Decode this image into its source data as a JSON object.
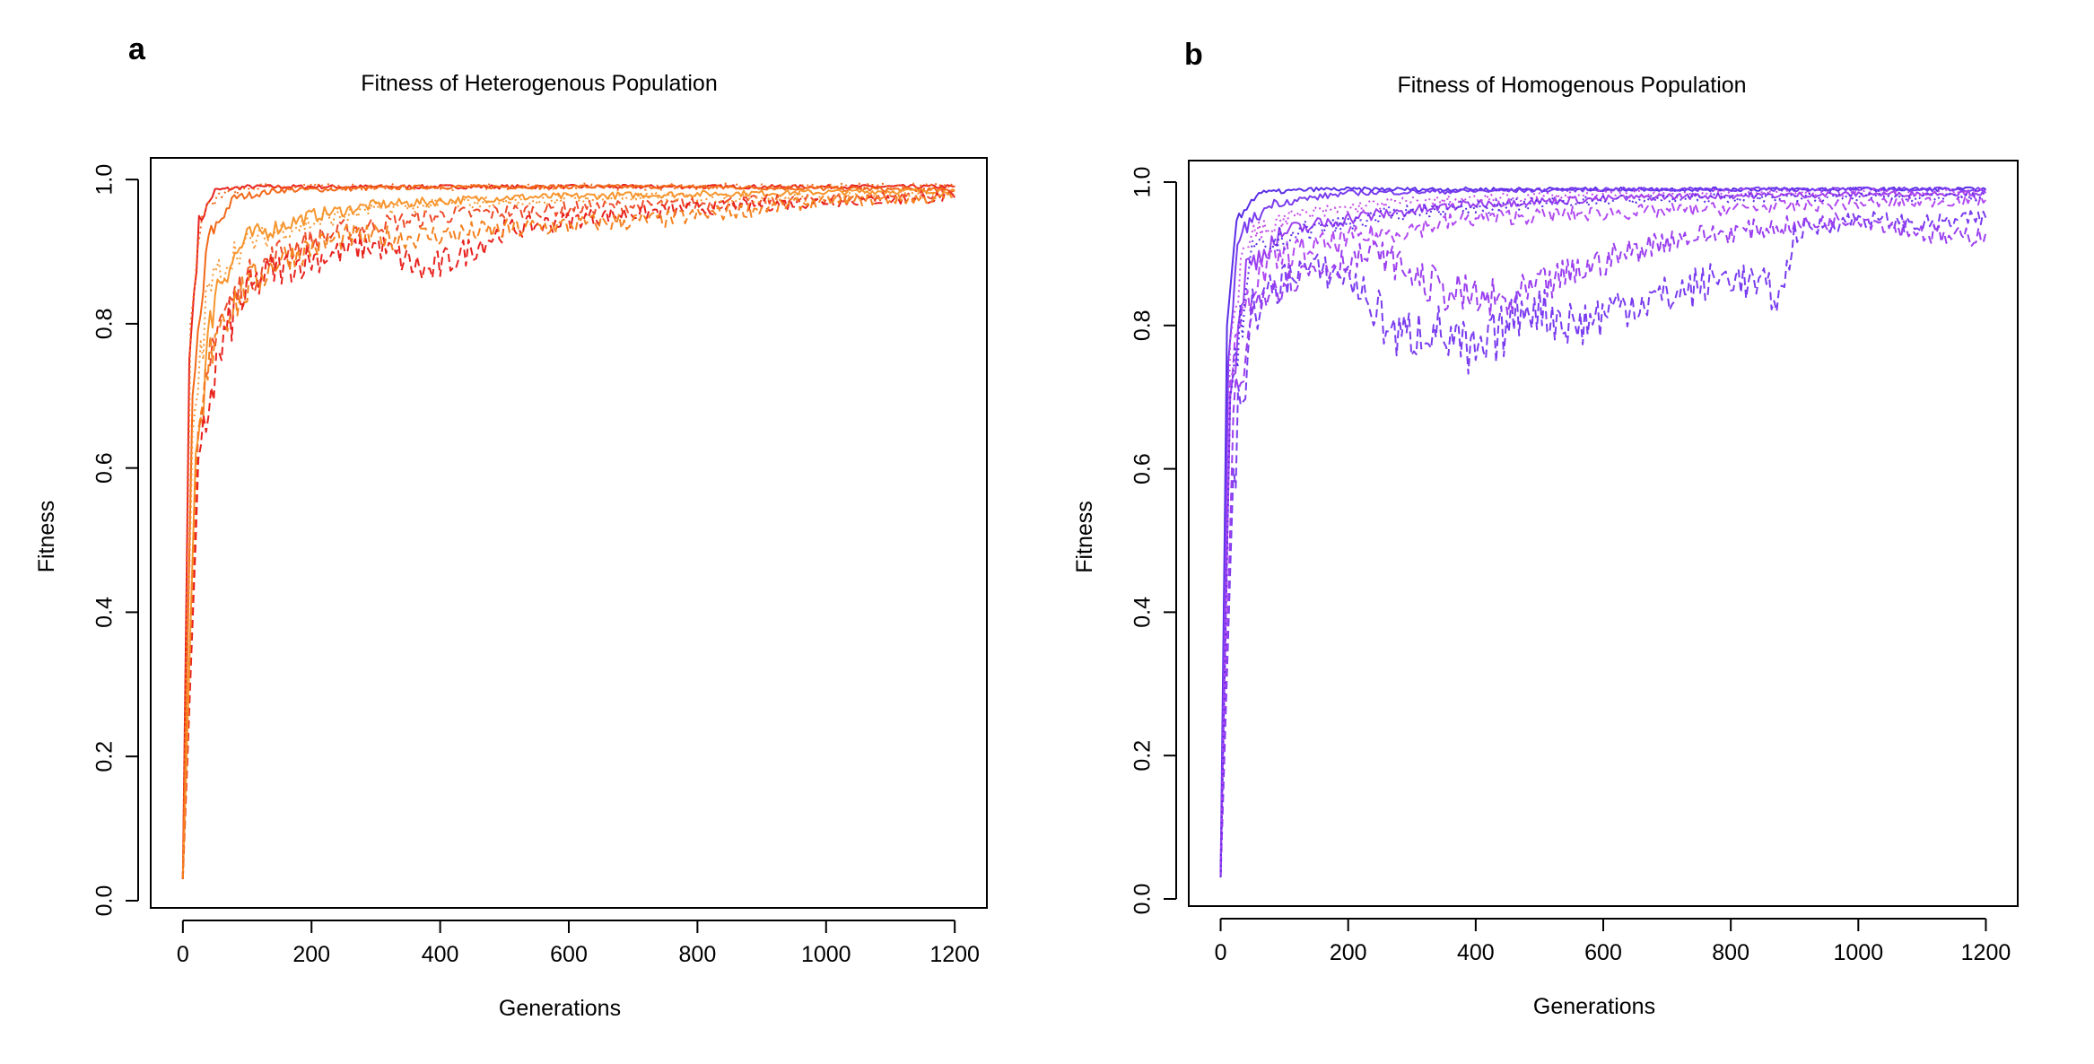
{
  "panels": [
    {
      "letter": "a",
      "title": "Fitness of Heterogenous Population"
    },
    {
      "letter": "b",
      "title": "Fitness of Homogenous Population"
    }
  ],
  "chart_data": [
    {
      "type": "line",
      "title": "Fitness of Heterogenous Population",
      "xlabel": "Generations",
      "ylabel": "Fitness",
      "xlim": [
        -50,
        1250
      ],
      "ylim": [
        -0.01,
        1.03
      ],
      "xticks": [
        0,
        200,
        400,
        600,
        800,
        1000,
        1200
      ],
      "yticks": [
        "0.0",
        "0.2",
        "0.4",
        "0.6",
        "0.8",
        "1.0"
      ],
      "grid": false,
      "legend": "none",
      "colors": [
        "#e8221e",
        "#f26a1b",
        "#f7962f",
        "#ee4a2a",
        "#f58220"
      ],
      "series": [
        {
          "values": [
            [
              0,
              0.03
            ],
            [
              10,
              0.75
            ],
            [
              25,
              0.94
            ],
            [
              50,
              0.985
            ],
            [
              100,
              0.99
            ],
            [
              300,
              0.99
            ],
            [
              600,
              0.99
            ],
            [
              900,
              0.99
            ],
            [
              1200,
              0.99
            ]
          ],
          "color": "#e8221e",
          "dash": "solid"
        },
        {
          "values": [
            [
              0,
              0.03
            ],
            [
              15,
              0.7
            ],
            [
              40,
              0.92
            ],
            [
              80,
              0.975
            ],
            [
              150,
              0.985
            ],
            [
              400,
              0.99
            ],
            [
              800,
              0.99
            ],
            [
              1200,
              0.985
            ]
          ],
          "color": "#f26a1b",
          "dash": "solid"
        },
        {
          "values": [
            [
              0,
              0.03
            ],
            [
              20,
              0.62
            ],
            [
              50,
              0.85
            ],
            [
              100,
              0.92
            ],
            [
              200,
              0.95
            ],
            [
              300,
              0.965
            ],
            [
              500,
              0.975
            ],
            [
              800,
              0.98
            ],
            [
              1200,
              0.985
            ]
          ],
          "color": "#f7962f",
          "dash": "solid"
        },
        {
          "values": [
            [
              0,
              0.03
            ],
            [
              20,
              0.55
            ],
            [
              50,
              0.8
            ],
            [
              100,
              0.86
            ],
            [
              150,
              0.9
            ],
            [
              250,
              0.93
            ],
            [
              400,
              0.95
            ],
            [
              600,
              0.96
            ],
            [
              900,
              0.97
            ],
            [
              1200,
              0.98
            ]
          ],
          "color": "#ee4a2a",
          "dash": "dashed"
        },
        {
          "values": [
            [
              0,
              0.03
            ],
            [
              20,
              0.5
            ],
            [
              40,
              0.7
            ],
            [
              80,
              0.82
            ],
            [
              130,
              0.87
            ],
            [
              200,
              0.89
            ],
            [
              300,
              0.91
            ],
            [
              380,
              0.87
            ],
            [
              420,
              0.89
            ],
            [
              500,
              0.93
            ],
            [
              650,
              0.95
            ],
            [
              800,
              0.96
            ],
            [
              900,
              0.965
            ],
            [
              1000,
              0.97
            ],
            [
              1200,
              0.975
            ]
          ],
          "color": "#e8221e",
          "dash": "dashed"
        },
        {
          "values": [
            [
              0,
              0.03
            ],
            [
              20,
              0.6
            ],
            [
              50,
              0.8
            ],
            [
              100,
              0.85
            ],
            [
              150,
              0.89
            ],
            [
              250,
              0.92
            ],
            [
              350,
              0.92
            ],
            [
              500,
              0.93
            ],
            [
              650,
              0.94
            ],
            [
              750,
              0.945
            ],
            [
              800,
              0.95
            ],
            [
              1000,
              0.97
            ],
            [
              1200,
              0.975
            ]
          ],
          "color": "#f58220",
          "dash": "dashed"
        },
        {
          "values": [
            [
              0,
              0.03
            ],
            [
              15,
              0.65
            ],
            [
              40,
              0.85
            ],
            [
              80,
              0.9
            ],
            [
              150,
              0.93
            ],
            [
              300,
              0.96
            ],
            [
              500,
              0.97
            ],
            [
              700,
              0.975
            ],
            [
              900,
              0.975
            ],
            [
              1200,
              0.98
            ]
          ],
          "color": "#f7962f",
          "dash": "dotted"
        },
        {
          "values": [
            [
              0,
              0.03
            ],
            [
              12,
              0.8
            ],
            [
              30,
              0.95
            ],
            [
              60,
              0.98
            ],
            [
              120,
              0.99
            ],
            [
              400,
              0.99
            ],
            [
              900,
              0.99
            ],
            [
              1200,
              0.99
            ]
          ],
          "color": "#f26a1b",
          "dash": "dotted"
        }
      ]
    },
    {
      "type": "line",
      "title": "Fitness of Homogenous Population",
      "xlabel": "Generations",
      "ylabel": "Fitness",
      "xlim": [
        -50,
        1250
      ],
      "ylim": [
        -0.01,
        1.03
      ],
      "xticks": [
        0,
        200,
        400,
        600,
        800,
        1000,
        1200
      ],
      "yticks": [
        "0.0",
        "0.2",
        "0.4",
        "0.6",
        "0.8",
        "1.0"
      ],
      "grid": false,
      "legend": "none",
      "colors": [
        "#5a2ee6",
        "#7a3cf0",
        "#9b3ff0",
        "#b14af2",
        "#c44ce8"
      ],
      "series": [
        {
          "values": [
            [
              0,
              0.03
            ],
            [
              10,
              0.8
            ],
            [
              25,
              0.95
            ],
            [
              60,
              0.985
            ],
            [
              150,
              0.99
            ],
            [
              400,
              0.99
            ],
            [
              800,
              0.99
            ],
            [
              1200,
              0.99
            ]
          ],
          "color": "#5a2ee6",
          "dash": "solid"
        },
        {
          "values": [
            [
              0,
              0.03
            ],
            [
              12,
              0.75
            ],
            [
              30,
              0.93
            ],
            [
              80,
              0.97
            ],
            [
              200,
              0.985
            ],
            [
              600,
              0.99
            ],
            [
              1200,
              0.99
            ]
          ],
          "color": "#7a3cf0",
          "dash": "solid"
        },
        {
          "values": [
            [
              0,
              0.03
            ],
            [
              15,
              0.7
            ],
            [
              40,
              0.88
            ],
            [
              100,
              0.93
            ],
            [
              200,
              0.95
            ],
            [
              400,
              0.97
            ],
            [
              700,
              0.98
            ],
            [
              1200,
              0.985
            ]
          ],
          "color": "#9b3ff0",
          "dash": "solid"
        },
        {
          "values": [
            [
              0,
              0.03
            ],
            [
              15,
              0.72
            ],
            [
              50,
              0.86
            ],
            [
              100,
              0.9
            ],
            [
              200,
              0.92
            ],
            [
              400,
              0.95
            ],
            [
              700,
              0.96
            ],
            [
              1000,
              0.97
            ],
            [
              1200,
              0.975
            ]
          ],
          "color": "#b14af2",
          "dash": "dashed"
        },
        {
          "values": [
            [
              0,
              0.03
            ],
            [
              20,
              0.6
            ],
            [
              50,
              0.82
            ],
            [
              120,
              0.88
            ],
            [
              200,
              0.87
            ],
            [
              280,
              0.78
            ],
            [
              330,
              0.8
            ],
            [
              400,
              0.75
            ],
            [
              480,
              0.83
            ],
            [
              560,
              0.8
            ],
            [
              630,
              0.83
            ],
            [
              700,
              0.84
            ],
            [
              800,
              0.87
            ],
            [
              880,
              0.84
            ],
            [
              900,
              0.93
            ],
            [
              1000,
              0.95
            ],
            [
              1100,
              0.94
            ],
            [
              1200,
              0.95
            ]
          ],
          "color": "#7a3cf0",
          "dash": "dashed"
        },
        {
          "values": [
            [
              0,
              0.03
            ],
            [
              20,
              0.68
            ],
            [
              60,
              0.85
            ],
            [
              150,
              0.88
            ],
            [
              250,
              0.9
            ],
            [
              320,
              0.86
            ],
            [
              380,
              0.84
            ],
            [
              450,
              0.83
            ],
            [
              520,
              0.86
            ],
            [
              600,
              0.89
            ],
            [
              700,
              0.92
            ],
            [
              800,
              0.93
            ],
            [
              1000,
              0.95
            ],
            [
              1150,
              0.92
            ],
            [
              1200,
              0.93
            ]
          ],
          "color": "#9b3ff0",
          "dash": "dashed"
        },
        {
          "values": [
            [
              0,
              0.03
            ],
            [
              15,
              0.78
            ],
            [
              40,
              0.92
            ],
            [
              100,
              0.95
            ],
            [
              250,
              0.97
            ],
            [
              500,
              0.98
            ],
            [
              800,
              0.985
            ],
            [
              1200,
              0.985
            ]
          ],
          "color": "#c44ce8",
          "dash": "dotted"
        },
        {
          "values": [
            [
              0,
              0.03
            ],
            [
              15,
              0.7
            ],
            [
              50,
              0.9
            ],
            [
              120,
              0.93
            ],
            [
              300,
              0.96
            ],
            [
              600,
              0.975
            ],
            [
              900,
              0.98
            ],
            [
              1200,
              0.98
            ]
          ],
          "color": "#5a2ee6",
          "dash": "dotted"
        }
      ]
    }
  ]
}
